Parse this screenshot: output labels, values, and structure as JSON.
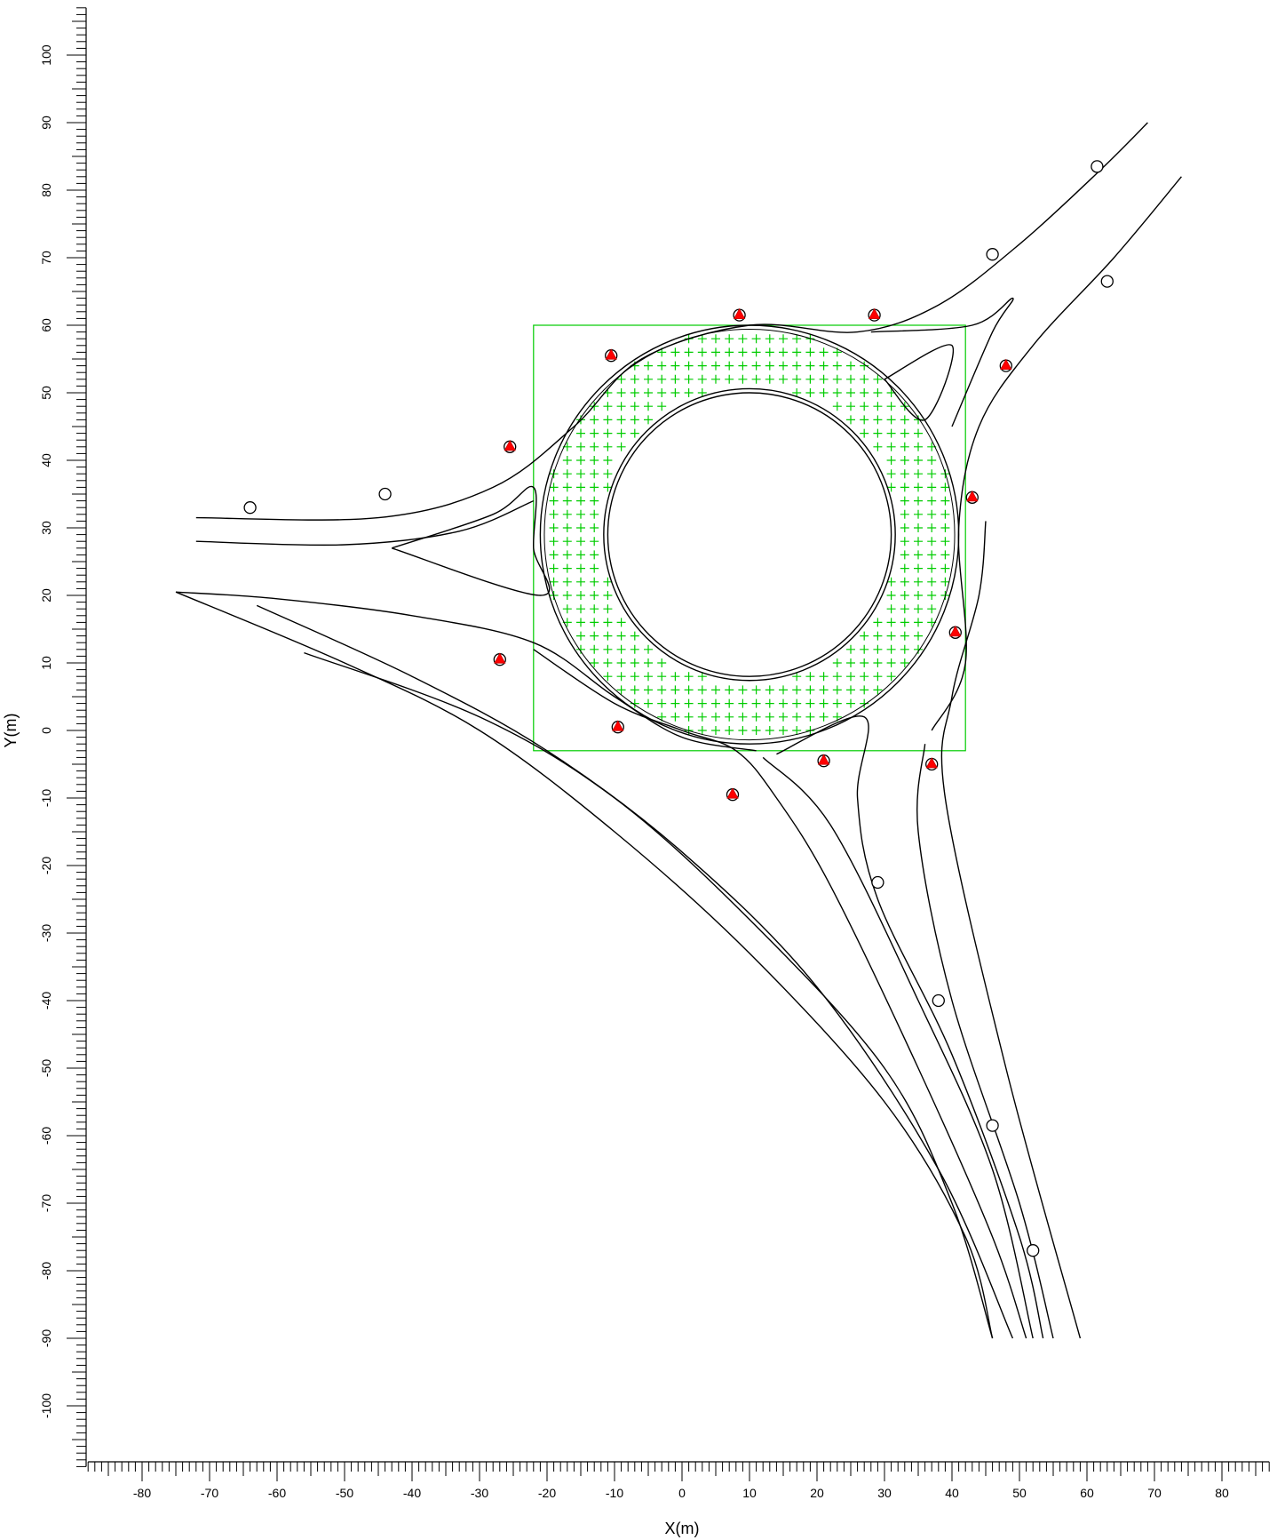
{
  "chart_data": {
    "type": "plan-view",
    "xlabel": "X(m)",
    "ylabel": "Y(m)",
    "xlim": [
      -88,
      87
    ],
    "ylim": [
      -109,
      107
    ],
    "x_ticks": [
      -80,
      -70,
      -60,
      -50,
      -40,
      -30,
      -20,
      -10,
      0,
      10,
      20,
      30,
      40,
      50,
      60,
      70,
      80
    ],
    "y_ticks": [
      100,
      90,
      80,
      70,
      60,
      50,
      40,
      30,
      20,
      10,
      0,
      -10,
      -20,
      -30,
      -40,
      -50,
      -60,
      -70,
      -80,
      -90,
      -100
    ],
    "tick_labels_x": [
      "-80",
      "-70",
      "-60",
      "-50",
      "-40",
      "-30",
      "-20",
      "-10",
      "0",
      "10",
      "20",
      "30",
      "40",
      "50",
      "60",
      "70",
      "80"
    ],
    "tick_labels_y": [
      "100",
      "90",
      "80",
      "70",
      "60",
      "50",
      "40",
      "30",
      "20",
      "10",
      "0",
      "-10",
      "-20",
      "-30",
      "-40",
      "-50",
      "-60",
      "-70",
      "-80",
      "-90",
      "-100"
    ],
    "roundabout": {
      "center": [
        10,
        29
      ],
      "central_island_radius": 21,
      "outer_radius": 31
    },
    "grid_area": {
      "x_range": [
        -22,
        42
      ],
      "y_range": [
        -3,
        60
      ],
      "marker": "+",
      "color": "#00cc00"
    },
    "receivers": [
      [
        -64,
        33
      ],
      [
        -44,
        35
      ],
      [
        46,
        70.5
      ],
      [
        61.5,
        83.5
      ],
      [
        63,
        66.5
      ],
      [
        29,
        -22.5
      ],
      [
        38,
        -40
      ],
      [
        46,
        -58.5
      ],
      [
        52,
        -77
      ]
    ],
    "flagged_receivers": [
      [
        8.5,
        61.5
      ],
      [
        28.5,
        61.5
      ],
      [
        -10.5,
        55.5
      ],
      [
        -25.5,
        42
      ],
      [
        48,
        54
      ],
      [
        43,
        34.5
      ],
      [
        40.5,
        14.5
      ],
      [
        -27,
        10.5
      ],
      [
        -9.5,
        0.5
      ],
      [
        7.5,
        -9.5
      ],
      [
        21,
        -4.5
      ],
      [
        37,
        -5
      ]
    ],
    "roads": [
      [
        [
          -72,
          31.5
        ],
        [
          -45,
          31.5
        ],
        [
          -28,
          36
        ],
        [
          -16,
          45
        ],
        [
          -6,
          55
        ],
        [
          10,
          60
        ],
        [
          26,
          59
        ],
        [
          38,
          63
        ],
        [
          50,
          72
        ],
        [
          62,
          83
        ],
        [
          69,
          90
        ]
      ],
      [
        [
          -72,
          28
        ],
        [
          -50,
          27.5
        ],
        [
          -33,
          29.5
        ],
        [
          -22,
          34
        ]
      ],
      [
        [
          -43,
          27
        ],
        [
          -28,
          32
        ],
        [
          -22,
          36
        ],
        [
          -22,
          27
        ],
        [
          -21,
          20
        ],
        [
          -43,
          27
        ]
      ],
      [
        [
          -75,
          20.5
        ],
        [
          -60,
          19.5
        ],
        [
          -40,
          17
        ],
        [
          -22,
          13
        ],
        [
          -10,
          5
        ],
        [
          0,
          -1
        ],
        [
          11,
          -3
        ]
      ],
      [
        [
          -75,
          20.5
        ],
        [
          -50,
          10
        ],
        [
          -30,
          0
        ],
        [
          -10,
          -15
        ],
        [
          10,
          -33
        ],
        [
          30,
          -55
        ],
        [
          42,
          -75
        ],
        [
          46,
          -90
        ]
      ],
      [
        [
          -63,
          18.5
        ],
        [
          -40,
          8
        ],
        [
          -20,
          -3
        ],
        [
          0,
          -18
        ],
        [
          20,
          -38
        ],
        [
          38,
          -65
        ],
        [
          49,
          -90
        ]
      ],
      [
        [
          -56,
          11.5
        ],
        [
          -30,
          2
        ],
        [
          -10,
          -10
        ],
        [
          10,
          -28
        ],
        [
          30,
          -50
        ],
        [
          40,
          -70
        ],
        [
          46,
          -90
        ]
      ],
      [
        [
          -22,
          12
        ],
        [
          -10,
          4
        ],
        [
          0,
          0
        ],
        [
          8,
          -3
        ],
        [
          14,
          -10
        ],
        [
          22,
          -23
        ],
        [
          35,
          -50
        ],
        [
          46,
          -75
        ],
        [
          51,
          -90
        ]
      ],
      [
        [
          14,
          -3.5
        ],
        [
          27,
          2
        ],
        [
          26,
          -10
        ],
        [
          29,
          -25
        ],
        [
          40,
          -48
        ],
        [
          50,
          -75
        ],
        [
          53.5,
          -90
        ]
      ],
      [
        [
          12,
          -4
        ],
        [
          22,
          -14
        ],
        [
          35,
          -40
        ],
        [
          46,
          -65
        ],
        [
          52,
          -90
        ]
      ],
      [
        [
          36,
          -2
        ],
        [
          35,
          -15
        ],
        [
          40,
          -40
        ],
        [
          50,
          -70
        ],
        [
          55,
          -90
        ]
      ],
      [
        [
          37,
          0
        ],
        [
          42,
          10
        ],
        [
          41,
          30
        ],
        [
          44,
          45
        ],
        [
          52,
          57
        ],
        [
          64,
          70
        ],
        [
          74,
          82
        ]
      ],
      [
        [
          30,
          52
        ],
        [
          40,
          57
        ],
        [
          36,
          46
        ],
        [
          30,
          52
        ]
      ],
      [
        [
          40,
          45
        ],
        [
          46,
          59
        ],
        [
          49,
          64
        ],
        [
          43,
          60
        ],
        [
          28,
          59
        ]
      ],
      [
        [
          45,
          31
        ],
        [
          44,
          20
        ],
        [
          40,
          5
        ],
        [
          39,
          -10
        ],
        [
          48,
          -50
        ],
        [
          59,
          -90
        ]
      ]
    ]
  }
}
